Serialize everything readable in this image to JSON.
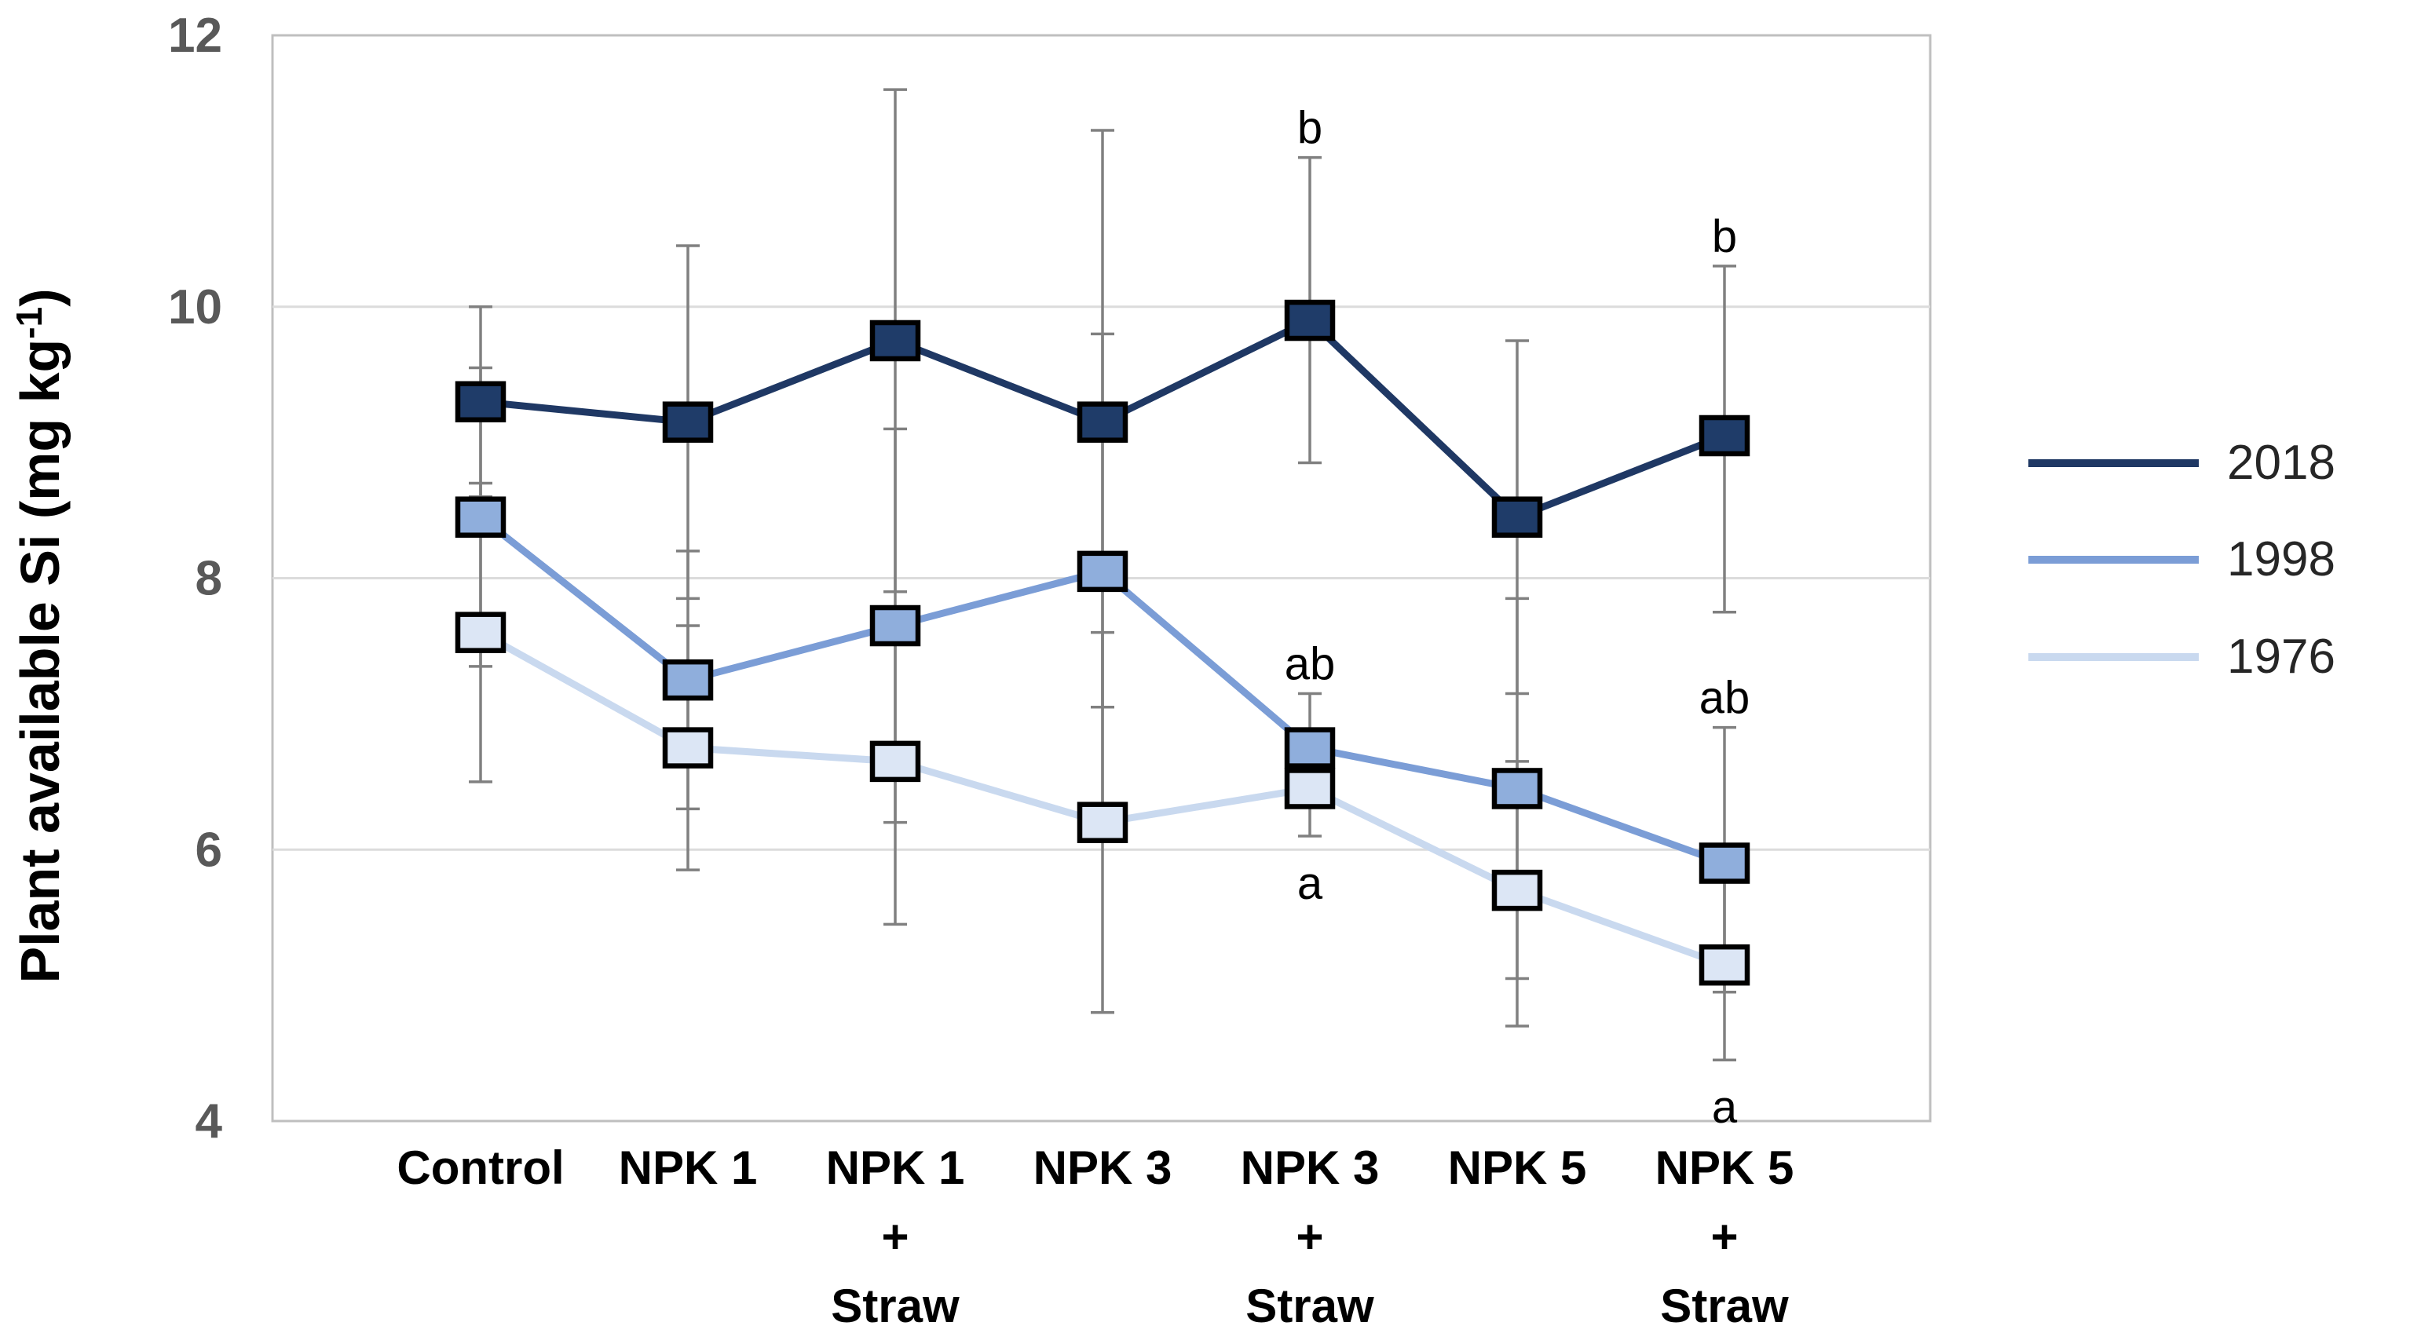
{
  "chart_data": {
    "type": "line",
    "title": "",
    "xlabel": "",
    "ylabel": "Plant available Si (mg kg⁻¹)",
    "ylabel_parts": {
      "main": "Plant available Si (mg kg",
      "sup": "-1",
      "end": ")"
    },
    "ylim": [
      4,
      12
    ],
    "yticks": [
      12,
      10,
      8,
      6,
      4
    ],
    "gridlines": [
      10,
      8,
      6
    ],
    "grid": "horizontal",
    "legend_position": "right",
    "categories": [
      "Control",
      "NPK 1",
      "NPK 1 + Straw",
      "NPK 3",
      "NPK 3 + Straw",
      "NPK 5",
      "NPK 5 + Straw"
    ],
    "category_label_lines": [
      [
        "Control"
      ],
      [
        "NPK 1"
      ],
      [
        "NPK 1",
        "+",
        "Straw"
      ],
      [
        "NPK 3"
      ],
      [
        "NPK 3",
        "+",
        "Straw"
      ],
      [
        "NPK 5"
      ],
      [
        "NPK 5",
        "+",
        "Straw"
      ]
    ],
    "series": [
      {
        "name": "2018",
        "line_color": "#1F3864",
        "marker_fill": "#1F3C69",
        "values": [
          9.3,
          9.15,
          9.75,
          9.15,
          9.9,
          8.45,
          9.05
        ],
        "err_plus": [
          0.7,
          1.3,
          1.85,
          2.15,
          1.2,
          1.3,
          1.25
        ],
        "err_minus": [
          0.7,
          1.3,
          1.85,
          2.1,
          1.05,
          1.3,
          1.3
        ]
      },
      {
        "name": "1998",
        "line_color": "#7B9DD6",
        "marker_fill": "#8FAEDC",
        "values": [
          8.45,
          7.25,
          7.65,
          8.05,
          6.75,
          6.45,
          5.9
        ],
        "err_plus": [
          1.1,
          0.95,
          1.45,
          1.75,
          0.4,
          1.4,
          1.0
        ],
        "err_minus": [
          1.1,
          0.95,
          1.45,
          1.75,
          0.4,
          1.4,
          0.95
        ]
      },
      {
        "name": "1976",
        "line_color": "#C9D9EF",
        "marker_fill": "#DCE6F5",
        "values": [
          7.6,
          6.75,
          6.65,
          6.2,
          6.45,
          5.7,
          5.15
        ],
        "err_plus": [
          1.1,
          0.9,
          1.1,
          1.4,
          0.35,
          0.95,
          0.7
        ],
        "err_minus": [
          1.1,
          0.9,
          1.2,
          1.4,
          0.35,
          1.0,
          0.7
        ]
      }
    ],
    "sig_letters": [
      {
        "category": "NPK 3 + Straw",
        "cat_index": 4,
        "series_index": 0,
        "series": "2018",
        "text": "b",
        "position": "above"
      },
      {
        "category": "NPK 3 + Straw",
        "cat_index": 4,
        "series_index": 1,
        "series": "1998",
        "text": "ab",
        "position": "above"
      },
      {
        "category": "NPK 3 + Straw",
        "cat_index": 4,
        "series_index": 2,
        "series": "1976",
        "text": "a",
        "position": "below"
      },
      {
        "category": "NPK 5 + Straw",
        "cat_index": 6,
        "series_index": 0,
        "series": "2018",
        "text": "b",
        "position": "above"
      },
      {
        "category": "NPK 5 + Straw",
        "cat_index": 6,
        "series_index": 1,
        "series": "1998",
        "text": "ab",
        "position": "above"
      },
      {
        "category": "NPK 5 + Straw",
        "cat_index": 6,
        "series_index": 2,
        "series": "1976",
        "text": "a",
        "position": "below"
      }
    ],
    "legend_entries": [
      "2018",
      "1998",
      "1976"
    ],
    "colors": {
      "background": "#FFFFFF",
      "plot_border": "#BFBFBF",
      "gridline": "#DCDCDC",
      "error_bar": "#808080",
      "marker_stroke": "#000000",
      "tick_label": "#595959",
      "axis_title": "#000000",
      "category_label": "#000000",
      "sig_letter": "#000000",
      "legend_label": "#262626"
    }
  }
}
